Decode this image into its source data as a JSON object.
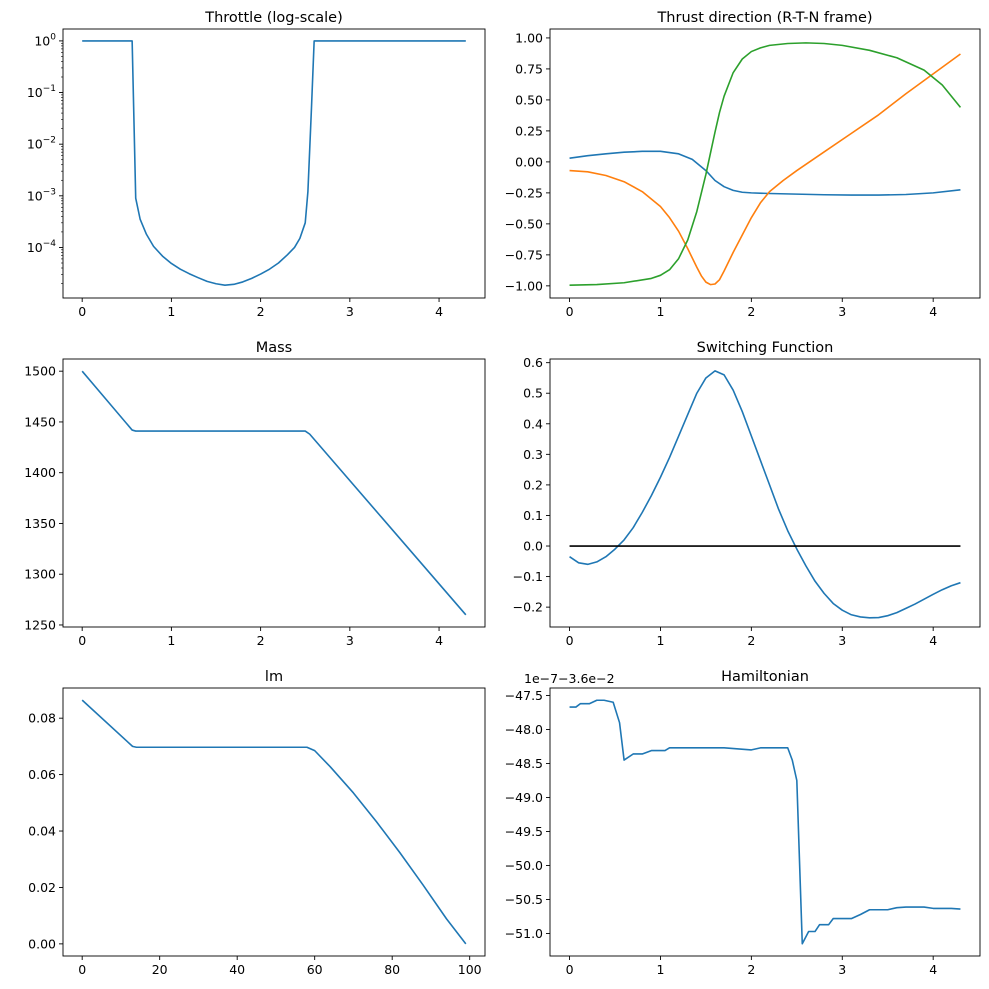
{
  "chart_data": [
    {
      "type": "line",
      "title": "Throttle (log-scale)",
      "xlabel": "",
      "ylabel": "",
      "yscale": "log",
      "xlim": [
        -0.215,
        4.515
      ],
      "ylim": [
        1.05e-05,
        1.7
      ],
      "xticks": [
        {
          "v": 0,
          "label": "0"
        },
        {
          "v": 1,
          "label": "1"
        },
        {
          "v": 2,
          "label": "2"
        },
        {
          "v": 3,
          "label": "3"
        },
        {
          "v": 4,
          "label": "4"
        }
      ],
      "yticks": [
        {
          "v": 1,
          "base": "10",
          "exp": "0"
        },
        {
          "v": 0.1,
          "base": "10",
          "exp": "−1"
        },
        {
          "v": 0.01,
          "base": "10",
          "exp": "−2"
        },
        {
          "v": 0.001,
          "base": "10",
          "exp": "−3"
        },
        {
          "v": 0.0001,
          "base": "10",
          "exp": "−4"
        }
      ],
      "series": [
        {
          "color": "#1f77b4",
          "x": [
            0,
            0.56,
            0.6,
            0.65,
            0.72,
            0.8,
            0.9,
            1.0,
            1.1,
            1.2,
            1.3,
            1.4,
            1.5,
            1.6,
            1.7,
            1.8,
            1.9,
            2.0,
            2.1,
            2.2,
            2.3,
            2.38,
            2.44,
            2.5,
            2.53,
            2.57,
            2.6,
            4.3
          ],
          "y": [
            1,
            1,
            0.0009,
            0.00035,
            0.00018,
            0.000105,
            6.8e-05,
            4.9e-05,
            3.8e-05,
            3.1e-05,
            2.6e-05,
            2.2e-05,
            1.98e-05,
            1.86e-05,
            1.93e-05,
            2.15e-05,
            2.52e-05,
            3.05e-05,
            3.8e-05,
            5e-05,
            7.2e-05,
            0.0001,
            0.00015,
            0.0003,
            0.0012,
            0.05,
            1,
            1
          ]
        }
      ]
    },
    {
      "type": "line",
      "title": "Thrust direction (R-T-N frame)",
      "xlabel": "",
      "ylabel": "",
      "xlim": [
        -0.215,
        4.515
      ],
      "ylim": [
        -1.098,
        1.072
      ],
      "xticks": [
        {
          "v": 0,
          "label": "0"
        },
        {
          "v": 1,
          "label": "1"
        },
        {
          "v": 2,
          "label": "2"
        },
        {
          "v": 3,
          "label": "3"
        },
        {
          "v": 4,
          "label": "4"
        }
      ],
      "yticks": [
        {
          "v": 1.0,
          "label": "1.00"
        },
        {
          "v": 0.75,
          "label": "0.75"
        },
        {
          "v": 0.5,
          "label": "0.50"
        },
        {
          "v": 0.25,
          "label": "0.25"
        },
        {
          "v": 0.0,
          "label": "0.00"
        },
        {
          "v": -0.25,
          "label": "−0.25"
        },
        {
          "v": -0.5,
          "label": "−0.50"
        },
        {
          "v": -0.75,
          "label": "−0.75"
        },
        {
          "v": -1.0,
          "label": "−1.00"
        }
      ],
      "series": [
        {
          "color": "#1f77b4",
          "x": [
            0,
            0.2,
            0.4,
            0.6,
            0.8,
            1.0,
            1.2,
            1.35,
            1.5,
            1.6,
            1.7,
            1.8,
            1.9,
            2.0,
            2.2,
            2.5,
            2.8,
            3.1,
            3.4,
            3.7,
            4.0,
            4.3
          ],
          "y": [
            0.03,
            0.05,
            0.065,
            0.078,
            0.085,
            0.085,
            0.065,
            0.02,
            -0.07,
            -0.15,
            -0.2,
            -0.23,
            -0.245,
            -0.25,
            -0.255,
            -0.26,
            -0.265,
            -0.268,
            -0.268,
            -0.263,
            -0.25,
            -0.225
          ]
        },
        {
          "color": "#ff7f0e",
          "x": [
            0,
            0.2,
            0.4,
            0.6,
            0.8,
            1.0,
            1.1,
            1.2,
            1.3,
            1.4,
            1.45,
            1.5,
            1.55,
            1.6,
            1.65,
            1.7,
            1.8,
            1.9,
            2.0,
            2.1,
            2.2,
            2.35,
            2.5,
            2.8,
            3.1,
            3.4,
            3.7,
            4.0,
            4.3
          ],
          "y": [
            -0.07,
            -0.08,
            -0.11,
            -0.16,
            -0.24,
            -0.36,
            -0.45,
            -0.56,
            -0.7,
            -0.85,
            -0.92,
            -0.97,
            -0.99,
            -0.985,
            -0.95,
            -0.88,
            -0.73,
            -0.59,
            -0.45,
            -0.33,
            -0.24,
            -0.15,
            -0.07,
            0.08,
            0.23,
            0.38,
            0.55,
            0.71,
            0.87
          ]
        },
        {
          "color": "#2ca02c",
          "x": [
            0,
            0.3,
            0.6,
            0.9,
            1.0,
            1.1,
            1.2,
            1.3,
            1.4,
            1.5,
            1.55,
            1.6,
            1.65,
            1.7,
            1.8,
            1.9,
            2.0,
            2.1,
            2.2,
            2.4,
            2.6,
            2.8,
            3.0,
            3.3,
            3.6,
            3.9,
            4.1,
            4.3
          ],
          "y": [
            -0.995,
            -0.99,
            -0.975,
            -0.94,
            -0.915,
            -0.87,
            -0.78,
            -0.63,
            -0.4,
            -0.1,
            0.07,
            0.24,
            0.4,
            0.53,
            0.72,
            0.83,
            0.89,
            0.92,
            0.94,
            0.955,
            0.96,
            0.955,
            0.94,
            0.9,
            0.84,
            0.74,
            0.62,
            0.44
          ]
        }
      ]
    },
    {
      "type": "line",
      "title": "Mass",
      "xlabel": "",
      "ylabel": "",
      "xlim": [
        -0.215,
        4.515
      ],
      "ylim": [
        1248,
        1512
      ],
      "xticks": [
        {
          "v": 0,
          "label": "0"
        },
        {
          "v": 1,
          "label": "1"
        },
        {
          "v": 2,
          "label": "2"
        },
        {
          "v": 3,
          "label": "3"
        },
        {
          "v": 4,
          "label": "4"
        }
      ],
      "yticks": [
        {
          "v": 1500,
          "label": "1500"
        },
        {
          "v": 1450,
          "label": "1450"
        },
        {
          "v": 1400,
          "label": "1400"
        },
        {
          "v": 1350,
          "label": "1350"
        },
        {
          "v": 1300,
          "label": "1300"
        },
        {
          "v": 1250,
          "label": "1250"
        }
      ],
      "series": [
        {
          "color": "#1f77b4",
          "x": [
            0,
            0.56,
            0.6,
            2.5,
            2.55,
            4.3
          ],
          "y": [
            1500,
            1442,
            1441,
            1441,
            1438,
            1260
          ]
        }
      ]
    },
    {
      "type": "line",
      "title": "Switching Function",
      "xlabel": "",
      "ylabel": "",
      "xlim": [
        -0.215,
        4.515
      ],
      "ylim": [
        -0.265,
        0.612
      ],
      "xticks": [
        {
          "v": 0,
          "label": "0"
        },
        {
          "v": 1,
          "label": "1"
        },
        {
          "v": 2,
          "label": "2"
        },
        {
          "v": 3,
          "label": "3"
        },
        {
          "v": 4,
          "label": "4"
        }
      ],
      "yticks": [
        {
          "v": 0.6,
          "label": "0.6"
        },
        {
          "v": 0.5,
          "label": "0.5"
        },
        {
          "v": 0.4,
          "label": "0.4"
        },
        {
          "v": 0.3,
          "label": "0.3"
        },
        {
          "v": 0.2,
          "label": "0.2"
        },
        {
          "v": 0.1,
          "label": "0.1"
        },
        {
          "v": 0.0,
          "label": "0.0"
        },
        {
          "v": -0.1,
          "label": "−0.1"
        },
        {
          "v": -0.2,
          "label": "−0.2"
        }
      ],
      "series": [
        {
          "color": "#1f77b4",
          "x": [
            0,
            0.1,
            0.2,
            0.3,
            0.4,
            0.5,
            0.6,
            0.7,
            0.8,
            0.9,
            1.0,
            1.1,
            1.2,
            1.3,
            1.4,
            1.5,
            1.6,
            1.7,
            1.8,
            1.9,
            2.0,
            2.1,
            2.2,
            2.3,
            2.4,
            2.5,
            2.6,
            2.7,
            2.8,
            2.9,
            3.0,
            3.1,
            3.2,
            3.3,
            3.4,
            3.5,
            3.6,
            3.7,
            3.8,
            3.9,
            4.0,
            4.1,
            4.2,
            4.3
          ],
          "y": [
            -0.035,
            -0.055,
            -0.06,
            -0.052,
            -0.035,
            -0.01,
            0.02,
            0.06,
            0.11,
            0.165,
            0.225,
            0.29,
            0.36,
            0.43,
            0.5,
            0.55,
            0.573,
            0.56,
            0.51,
            0.44,
            0.36,
            0.28,
            0.2,
            0.12,
            0.05,
            -0.01,
            -0.065,
            -0.115,
            -0.155,
            -0.188,
            -0.21,
            -0.225,
            -0.232,
            -0.235,
            -0.234,
            -0.228,
            -0.218,
            -0.204,
            -0.19,
            -0.174,
            -0.158,
            -0.143,
            -0.13,
            -0.12
          ]
        },
        {
          "color": "#000000",
          "x": [
            0,
            4.3
          ],
          "y": [
            0,
            0
          ]
        }
      ]
    },
    {
      "type": "line",
      "title": "lm",
      "xlabel": "",
      "ylabel": "",
      "xlim": [
        -4.95,
        103.95
      ],
      "ylim": [
        -0.0043,
        0.0907
      ],
      "xticks": [
        {
          "v": 0,
          "label": "0"
        },
        {
          "v": 20,
          "label": "20"
        },
        {
          "v": 40,
          "label": "40"
        },
        {
          "v": 60,
          "label": "60"
        },
        {
          "v": 80,
          "label": "80"
        },
        {
          "v": 100,
          "label": "100"
        }
      ],
      "yticks": [
        {
          "v": 0.08,
          "label": "0.08"
        },
        {
          "v": 0.06,
          "label": "0.06"
        },
        {
          "v": 0.04,
          "label": "0.04"
        },
        {
          "v": 0.02,
          "label": "0.02"
        },
        {
          "v": 0.0,
          "label": "0.00"
        }
      ],
      "series": [
        {
          "color": "#1f77b4",
          "x": [
            0,
            13,
            14,
            58,
            60,
            64,
            70,
            76,
            82,
            88,
            94,
            99
          ],
          "y": [
            0.0864,
            0.07,
            0.0697,
            0.0697,
            0.0685,
            0.0628,
            0.0535,
            0.0432,
            0.0323,
            0.0208,
            0.0089,
            0.0
          ]
        }
      ]
    },
    {
      "type": "line",
      "title": "Hamiltonian",
      "offset_text": "1e−7−3.6e−2",
      "xlabel": "",
      "ylabel": "",
      "xlim": [
        -0.215,
        4.515
      ],
      "ylim": [
        -51.33,
        -47.39
      ],
      "xticks": [
        {
          "v": 0,
          "label": "0"
        },
        {
          "v": 1,
          "label": "1"
        },
        {
          "v": 2,
          "label": "2"
        },
        {
          "v": 3,
          "label": "3"
        },
        {
          "v": 4,
          "label": "4"
        }
      ],
      "yticks": [
        {
          "v": -47.5,
          "label": "−47.5"
        },
        {
          "v": -48.0,
          "label": "−48.0"
        },
        {
          "v": -48.5,
          "label": "−48.5"
        },
        {
          "v": -49.0,
          "label": "−49.0"
        },
        {
          "v": -49.5,
          "label": "−49.5"
        },
        {
          "v": -50.0,
          "label": "−50.0"
        },
        {
          "v": -50.5,
          "label": "−50.5"
        },
        {
          "v": -51.0,
          "label": "−51.0"
        }
      ],
      "series": [
        {
          "color": "#1f77b4",
          "x": [
            0,
            0.07,
            0.12,
            0.22,
            0.3,
            0.38,
            0.48,
            0.55,
            0.6,
            0.7,
            0.8,
            0.9,
            1.05,
            1.1,
            1.5,
            1.7,
            2.0,
            2.1,
            2.4,
            2.45,
            2.5,
            2.56,
            2.63,
            2.7,
            2.75,
            2.85,
            2.9,
            3.1,
            3.2,
            3.3,
            3.5,
            3.6,
            3.7,
            3.9,
            4.0,
            4.2,
            4.3
          ],
          "y": [
            -47.67,
            -47.67,
            -47.62,
            -47.62,
            -47.57,
            -47.57,
            -47.6,
            -47.9,
            -48.45,
            -48.36,
            -48.36,
            -48.31,
            -48.31,
            -48.27,
            -48.27,
            -48.27,
            -48.3,
            -48.27,
            -48.27,
            -48.45,
            -48.75,
            -51.15,
            -50.97,
            -50.97,
            -50.87,
            -50.87,
            -50.78,
            -50.78,
            -50.72,
            -50.65,
            -50.65,
            -50.62,
            -50.61,
            -50.61,
            -50.63,
            -50.63,
            -50.64
          ]
        }
      ]
    }
  ]
}
